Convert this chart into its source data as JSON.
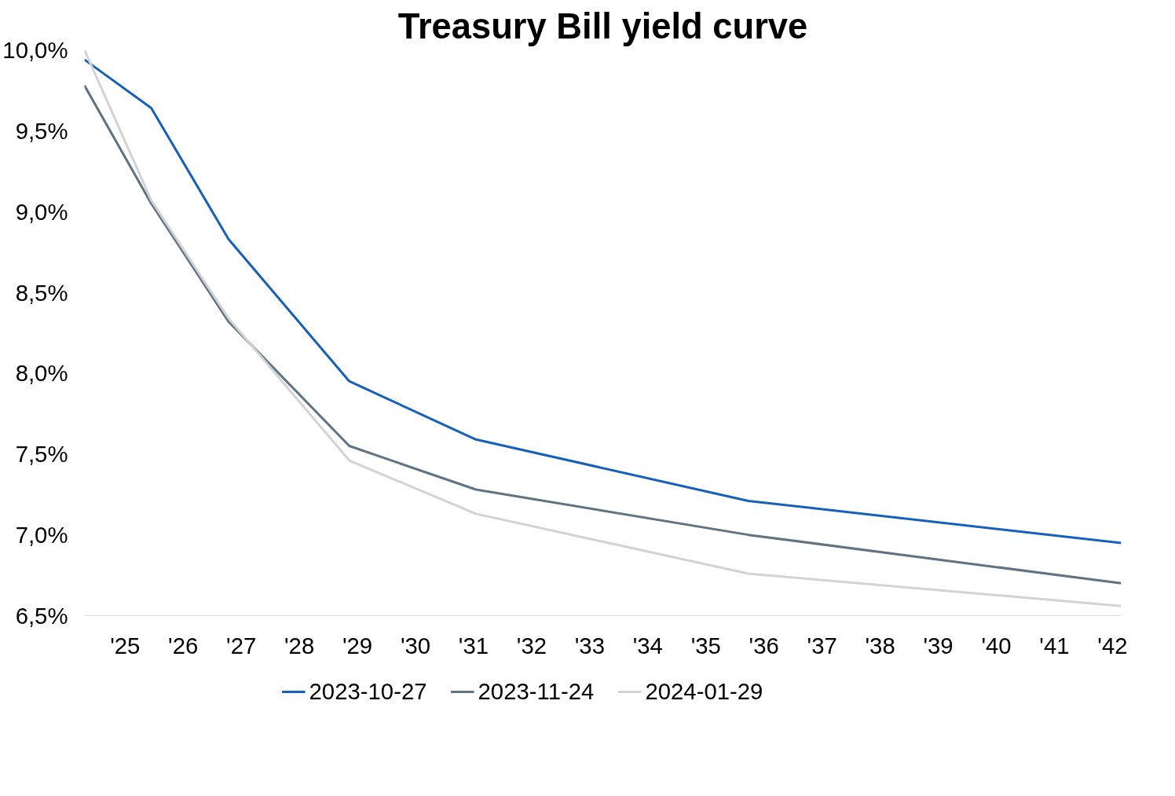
{
  "chart_data": {
    "type": "line",
    "title": "Treasury Bill yield curve",
    "x": [
      2024.3,
      2025.45,
      2026.78,
      2028.86,
      2031.04,
      2035.73,
      2042.15
    ],
    "series": [
      {
        "name": "2023-10-27",
        "color": "#1560bd",
        "values": [
          9.94,
          9.64,
          8.83,
          7.95,
          7.59,
          7.21,
          6.95
        ]
      },
      {
        "name": "2023-11-24",
        "color": "#5f7384",
        "values": [
          9.78,
          9.05,
          8.32,
          7.55,
          7.28,
          7.0,
          6.7
        ]
      },
      {
        "name": "2024-01-29",
        "color": "#d3d3d3",
        "values": [
          10.0,
          9.07,
          8.34,
          7.46,
          7.13,
          6.76,
          6.56
        ]
      }
    ],
    "xticks": [
      {
        "value": 2025,
        "label": "'25"
      },
      {
        "value": 2026,
        "label": "'26"
      },
      {
        "value": 2027,
        "label": "'27"
      },
      {
        "value": 2028,
        "label": "'28"
      },
      {
        "value": 2029,
        "label": "'29"
      },
      {
        "value": 2030,
        "label": "'30"
      },
      {
        "value": 2031,
        "label": "'31"
      },
      {
        "value": 2032,
        "label": "'32"
      },
      {
        "value": 2033,
        "label": "'33"
      },
      {
        "value": 2034,
        "label": "'34"
      },
      {
        "value": 2035,
        "label": "'35"
      },
      {
        "value": 2036,
        "label": "'36"
      },
      {
        "value": 2037,
        "label": "'37"
      },
      {
        "value": 2038,
        "label": "'38"
      },
      {
        "value": 2039,
        "label": "'39"
      },
      {
        "value": 2040,
        "label": "'40"
      },
      {
        "value": 2041,
        "label": "'41"
      },
      {
        "value": 2042,
        "label": "'42"
      }
    ],
    "xlim": [
      2024.3,
      2042.15
    ],
    "ylim": [
      6.5,
      10.0
    ],
    "yticks": [
      {
        "value": 6.5,
        "label": "6,5%"
      },
      {
        "value": 7.0,
        "label": "7,0%"
      },
      {
        "value": 7.5,
        "label": "7,5%"
      },
      {
        "value": 8.0,
        "label": "8,0%"
      },
      {
        "value": 8.5,
        "label": "8,5%"
      },
      {
        "value": 9.0,
        "label": "9,0%"
      },
      {
        "value": 9.5,
        "label": "9,5%"
      },
      {
        "value": 10.0,
        "label": "10,0%"
      }
    ],
    "grid": false,
    "legend": "bottom",
    "marker": "none",
    "line_style": "solid"
  }
}
